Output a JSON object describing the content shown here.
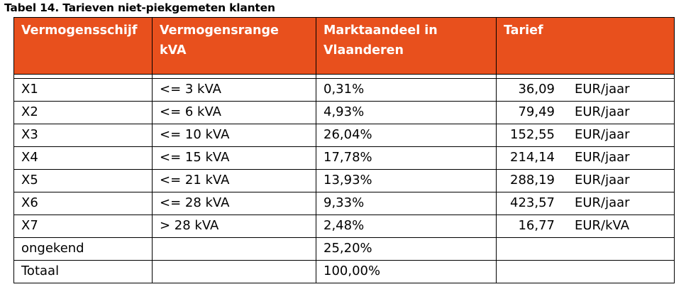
{
  "caption": "Tabel 14. Tarieven niet-piekgemeten klanten",
  "columns": [
    "Vermogensschijf",
    "Vermogensrange kVA",
    "Marktaandeel in Vlaanderen",
    "Tarief"
  ],
  "header_colors": {
    "header_background": "#e8501d",
    "header_text": "#ffffff"
  },
  "rows": [
    {
      "schijf": "X1",
      "range": "<= 3 kVA",
      "aandeel": "0,31%",
      "tarief": "36,09",
      "eenheid": "EUR/jaar"
    },
    {
      "schijf": "X2",
      "range": "<= 6 kVA",
      "aandeel": "4,93%",
      "tarief": "79,49",
      "eenheid": "EUR/jaar"
    },
    {
      "schijf": "X3",
      "range": "<= 10 kVA",
      "aandeel": "26,04%",
      "tarief": "152,55",
      "eenheid": "EUR/jaar"
    },
    {
      "schijf": "X4",
      "range": "<= 15 kVA",
      "aandeel": "17,78%",
      "tarief": "214,14",
      "eenheid": "EUR/jaar"
    },
    {
      "schijf": "X5",
      "range": "<= 21 kVA",
      "aandeel": "13,93%",
      "tarief": "288,19",
      "eenheid": "EUR/jaar"
    },
    {
      "schijf": "X6",
      "range": "<= 28 kVA",
      "aandeel": "9,33%",
      "tarief": "423,57",
      "eenheid": "EUR/jaar"
    },
    {
      "schijf": "X7",
      "range": "> 28 kVA",
      "aandeel": "2,48%",
      "tarief": "16,77",
      "eenheid": "EUR/kVA"
    },
    {
      "schijf": "ongekend",
      "range": "",
      "aandeel": "25,20%",
      "tarief": "",
      "eenheid": ""
    },
    {
      "schijf": "Totaal",
      "range": "",
      "aandeel": "100,00%",
      "tarief": "",
      "eenheid": ""
    }
  ]
}
